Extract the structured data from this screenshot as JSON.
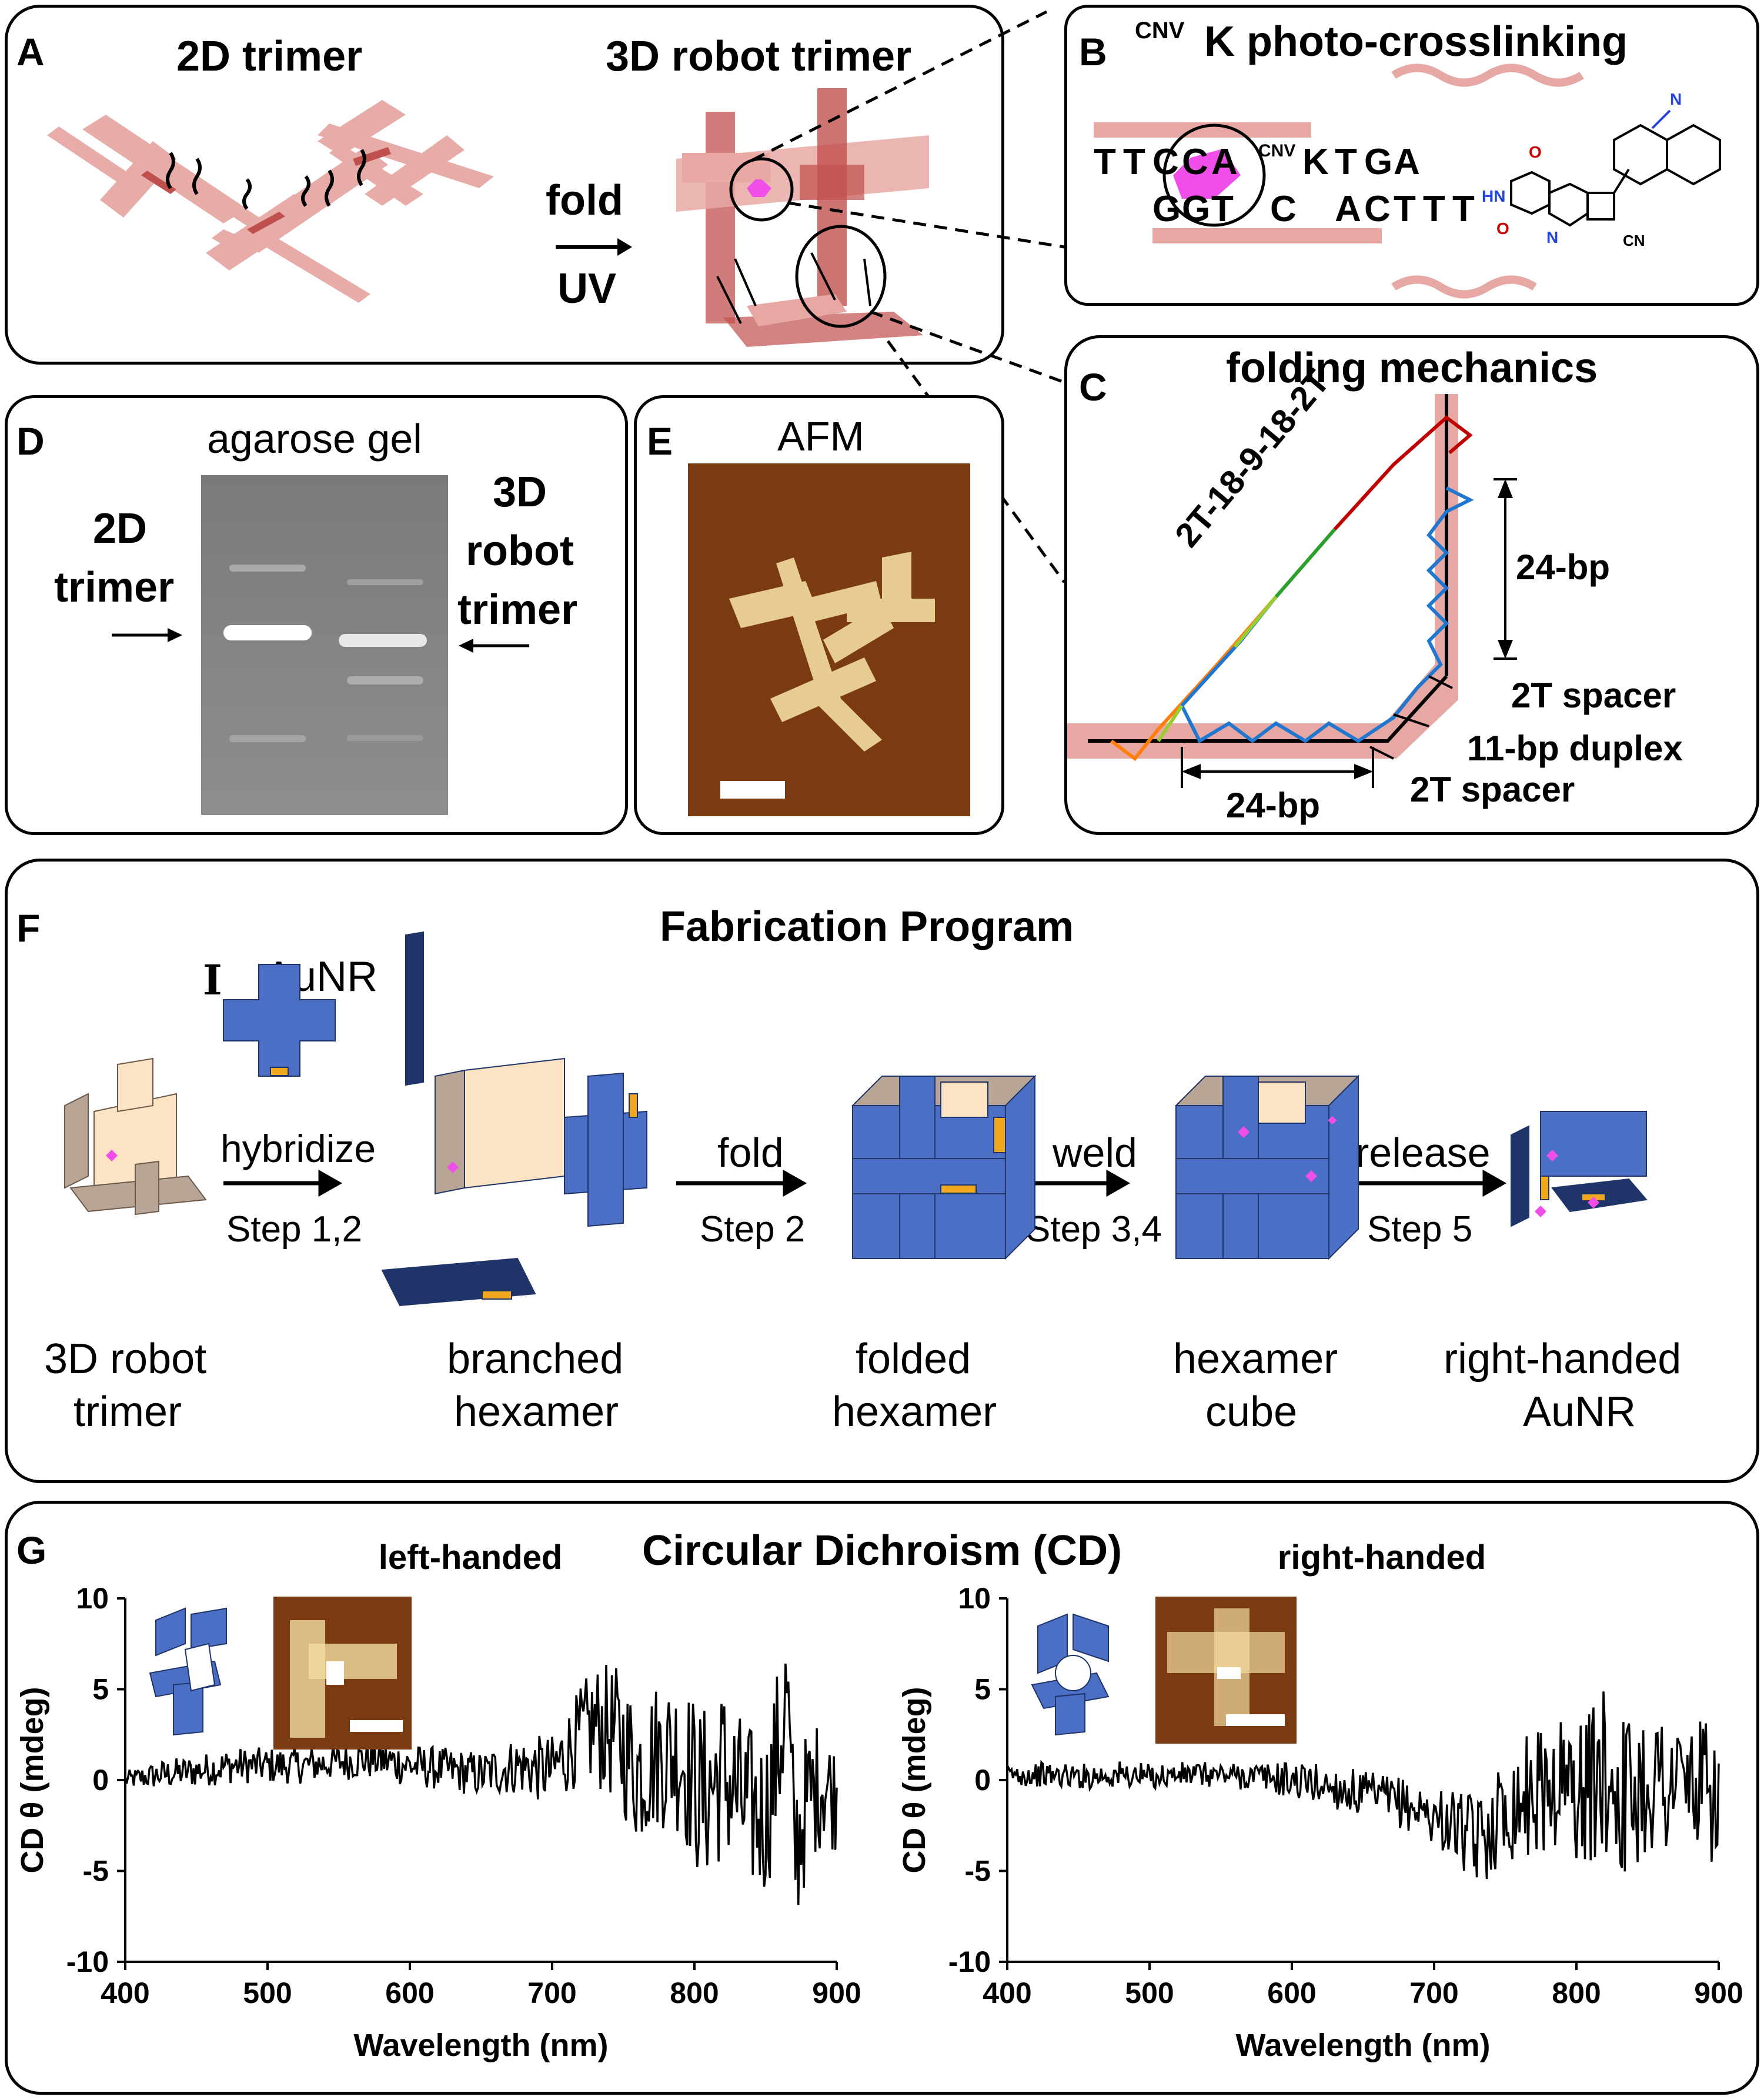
{
  "panelA": {
    "letter": "A",
    "title_2d": "2D trimer",
    "title_3d": "3D robot trimer",
    "fold": "fold",
    "uv": "UV"
  },
  "panelB": {
    "letter": "B",
    "title_sup": "CNV",
    "title_rest": "K photo-crosslinking",
    "top_strand": [
      "T",
      "T",
      "C",
      "C",
      "A",
      "K",
      "T",
      "G",
      "A"
    ],
    "cnv_sup": "CNV",
    "bottom_strand": [
      "G",
      "G",
      "T",
      "C",
      "A",
      "C",
      "T",
      "T",
      "T"
    ],
    "mol_labels": {
      "n": "N",
      "o1": "O",
      "o2": "O",
      "hn": "HN",
      "n2": "N",
      "cn": "CN"
    }
  },
  "panelC": {
    "letter": "C",
    "title": "folding mechanics",
    "diag_label": "2T-18-9-18-2T",
    "bp_right": "24-bp",
    "bp_bottom": "24-bp",
    "spacer_top": "2T spacer",
    "duplex": "11-bp duplex",
    "spacer_bottom": "2T spacer"
  },
  "panelD": {
    "letter": "D",
    "title": "agarose gel",
    "left_label": [
      "2D",
      "trimer"
    ],
    "right_label": [
      "3D",
      "robot",
      "trimer"
    ]
  },
  "panelE": {
    "letter": "E",
    "title": "AFM"
  },
  "panelF": {
    "letter": "F",
    "title": "Fabrication Program",
    "aunr_label": "AuNR",
    "steps": [
      {
        "verb": "hybridize",
        "step": "Step 1,2"
      },
      {
        "verb": "fold",
        "step": "Step 2"
      },
      {
        "verb": "weld",
        "step": "Step 3,4"
      },
      {
        "verb": "release",
        "step": "Step 5"
      }
    ],
    "stages": [
      [
        "3D robot",
        "trimer"
      ],
      [
        "branched",
        "hexamer"
      ],
      [
        "folded",
        "hexamer"
      ],
      [
        "hexamer",
        "cube"
      ],
      [
        "right-handed",
        "AuNR"
      ]
    ]
  },
  "panelG": {
    "letter": "G",
    "title": "Circular Dichroism (CD)"
  },
  "colors": {
    "origami_pink": "#e7a8a4",
    "origami_dark": "#c0504d",
    "tile_blue": "#4a6fc4",
    "tile_navy": "#1f3468",
    "tile_beige": "#fbe3c4",
    "tile_taupe": "#b8a595",
    "gold": "#f0a81e",
    "magenta": "#f04ee8"
  },
  "chart_data": [
    {
      "type": "line",
      "title": "left-handed",
      "xlabel": "Wavelength (nm)",
      "ylabel": "CD θ (mdeg)",
      "xlim": [
        400,
        900
      ],
      "ylim": [
        -10,
        10
      ],
      "xticks": [
        "400",
        "500",
        "600",
        "700",
        "800",
        "900"
      ],
      "yticks": [
        "10",
        "5",
        "0",
        "-5",
        "-10"
      ],
      "series": [
        {
          "x": [
            400,
            425,
            450,
            475,
            500,
            525,
            550,
            575,
            600,
            625,
            650,
            675,
            700,
            715,
            730,
            745,
            760,
            775,
            790,
            805,
            820,
            835,
            850,
            860,
            865,
            870,
            880,
            890,
            900
          ],
          "y": [
            0,
            0.3,
            0.5,
            0.8,
            0.8,
            0.8,
            1.0,
            1.2,
            0.8,
            0.6,
            0.3,
            0.8,
            0.5,
            2.0,
            3.0,
            2.5,
            0.5,
            1.5,
            1.5,
            -1.0,
            0.5,
            -1.5,
            -2.0,
            2.0,
            5.0,
            -4.0,
            -1.0,
            0.0,
            -1.0
          ],
          "amp": [
            0.5,
            0.8,
            0.9,
            1.0,
            1.0,
            1.0,
            1.0,
            1.2,
            1.2,
            1.2,
            1.3,
            1.6,
            2.0,
            2.5,
            3.5,
            3.8,
            4.2,
            4.2,
            4.5,
            5.0,
            5.0,
            4.8,
            4.5,
            5.0,
            4.5,
            5.0,
            4.0,
            3.5,
            3.0
          ]
        }
      ]
    },
    {
      "type": "line",
      "title": "right-handed",
      "xlabel": "Wavelength (nm)",
      "ylabel": "CD θ (mdeg)",
      "xlim": [
        400,
        900
      ],
      "ylim": [
        -10,
        10
      ],
      "xticks": [
        "400",
        "500",
        "600",
        "700",
        "800",
        "900"
      ],
      "yticks": [
        "10",
        "5",
        "0",
        "-5",
        "-10"
      ],
      "series": [
        {
          "x": [
            400,
            425,
            450,
            475,
            500,
            525,
            550,
            575,
            600,
            625,
            650,
            675,
            700,
            715,
            730,
            745,
            760,
            775,
            790,
            805,
            820,
            835,
            850,
            865,
            880,
            900
          ],
          "y": [
            0.3,
            0.3,
            0.2,
            0.3,
            0.2,
            0.3,
            0.3,
            0.2,
            0.0,
            -0.3,
            -0.8,
            -1.2,
            -2.0,
            -2.5,
            -3.5,
            -2.0,
            -1.0,
            -0.5,
            0.0,
            -0.8,
            0.5,
            -1.0,
            0.0,
            0.0,
            -0.3,
            -1.0
          ],
          "amp": [
            0.6,
            0.7,
            0.7,
            0.8,
            0.7,
            0.7,
            0.7,
            0.8,
            1.0,
            1.2,
            1.3,
            1.4,
            1.6,
            2.0,
            2.5,
            2.8,
            3.2,
            3.5,
            3.8,
            4.2,
            4.5,
            4.5,
            4.2,
            4.2,
            4.0,
            3.8
          ]
        }
      ]
    }
  ]
}
